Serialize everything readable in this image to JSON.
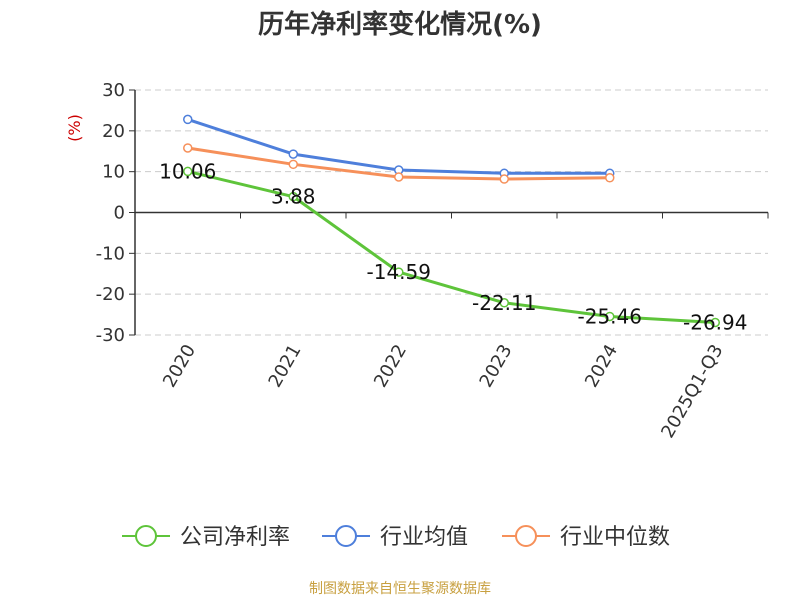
{
  "chart_data": {
    "type": "line",
    "title": "历年净利率变化情况(%)",
    "ylabel": "(%)",
    "xlabel": "",
    "categories": [
      "2020",
      "2021",
      "2022",
      "2023",
      "2024",
      "2025Q1-Q3"
    ],
    "ylim": [
      -30,
      30
    ],
    "yticks": [
      30,
      20,
      10,
      0,
      -10,
      -20,
      -30
    ],
    "grid": true,
    "legend_position": "bottom",
    "series": [
      {
        "name": "公司净利率",
        "color": "#5ec43a",
        "values": [
          10.06,
          3.88,
          -14.59,
          -22.11,
          -25.46,
          -26.94
        ],
        "labels": [
          "10.06",
          "3.88",
          "-14.59",
          "-22.11",
          "-25.46",
          "-26.94"
        ]
      },
      {
        "name": "行业均值",
        "color": "#4e7fdb",
        "values": [
          22.8,
          14.3,
          10.4,
          9.6,
          9.6,
          null
        ]
      },
      {
        "name": "行业中位数",
        "color": "#f6905a",
        "values": [
          15.8,
          11.8,
          8.7,
          8.2,
          8.5,
          null
        ]
      }
    ]
  },
  "source": "制图数据来自恒生聚源数据库"
}
